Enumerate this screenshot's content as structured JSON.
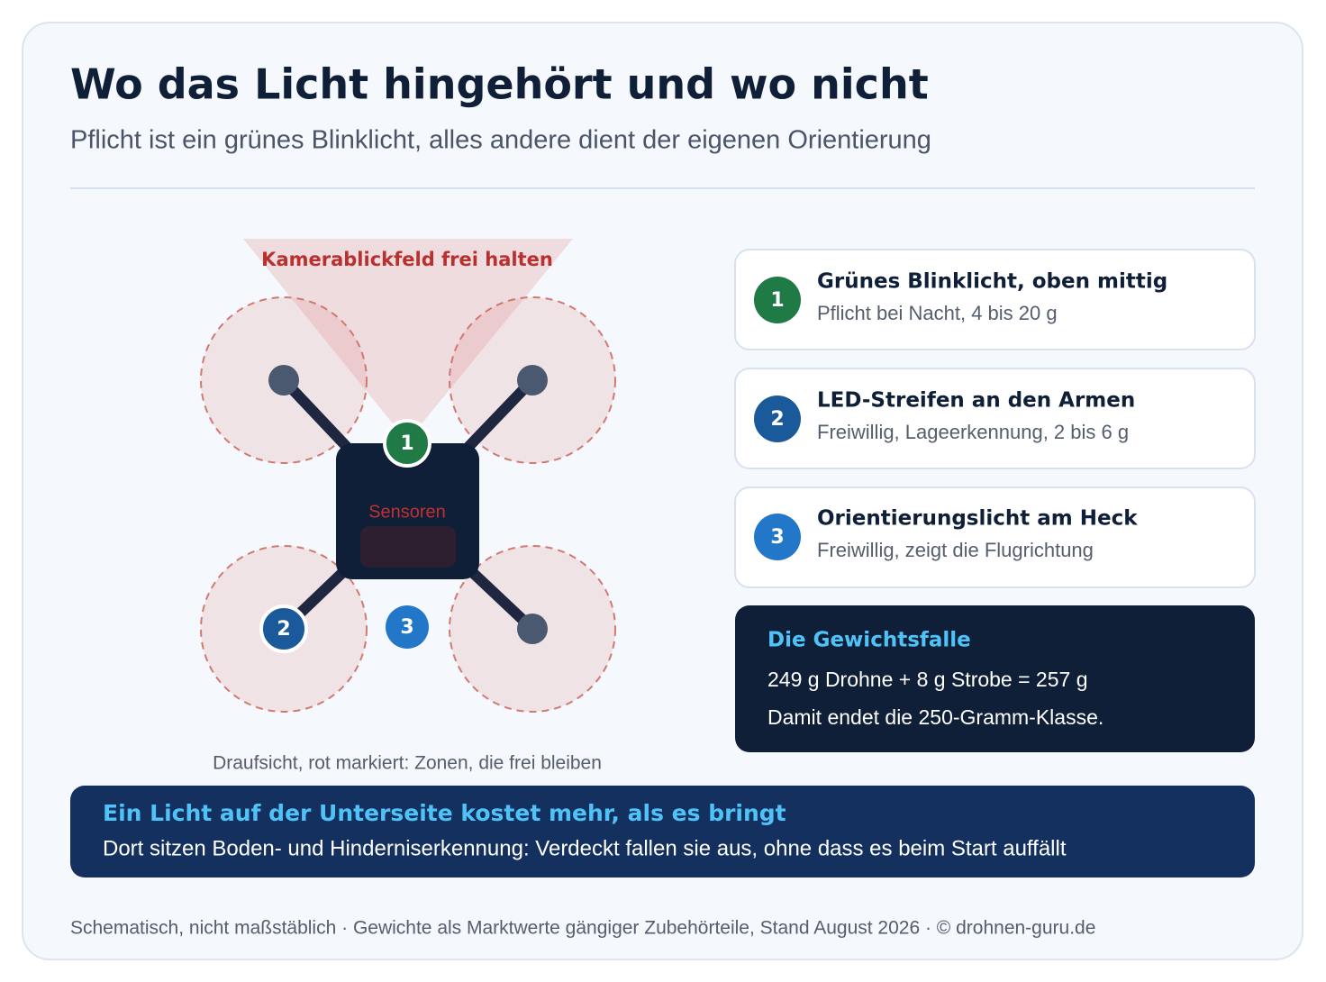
{
  "header": {
    "title": "Wo das Licht hingehört und wo nicht",
    "subtitle": "Pflicht ist ein grünes Blinklicht, alles andere dient der eigenen Orientierung"
  },
  "diagram": {
    "camera_label": "Kamerablickfeld frei halten",
    "sensor_label": "Sensoren",
    "caption": "Draufsicht, rot markiert: Zonen, die frei bleiben"
  },
  "items": [
    {
      "number": "1",
      "title": "Grünes Blinklicht, oben mittig",
      "desc": "Pflicht bei Nacht, 4 bis 20 g"
    },
    {
      "number": "2",
      "title": "LED-Streifen an den Armen",
      "desc": "Freiwillig, Lageerkennung, 2 bis 6 g"
    },
    {
      "number": "3",
      "title": "Orientierungslicht am Heck",
      "desc": "Freiwillig, zeigt die Flugrichtung"
    }
  ],
  "weight_box": {
    "title": "Die Gewichtsfalle",
    "lines": [
      "249 g Drohne + 8 g Strobe = 257 g",
      "Damit endet die 250-Gramm-Klasse."
    ]
  },
  "banner": {
    "title": "Ein Licht auf der Unterseite kostet mehr, als es bringt",
    "text": "Dort sitzen Boden- und Hinderniserkennung: Verdeckt fallen sie aus, ohne dass es beim Start auffällt"
  },
  "footer": "Schematisch, nicht maßstäblich · Gewichte als Marktwerte gängiger Zubehörteile, Stand August 2026 · © drohnen-guru.de"
}
